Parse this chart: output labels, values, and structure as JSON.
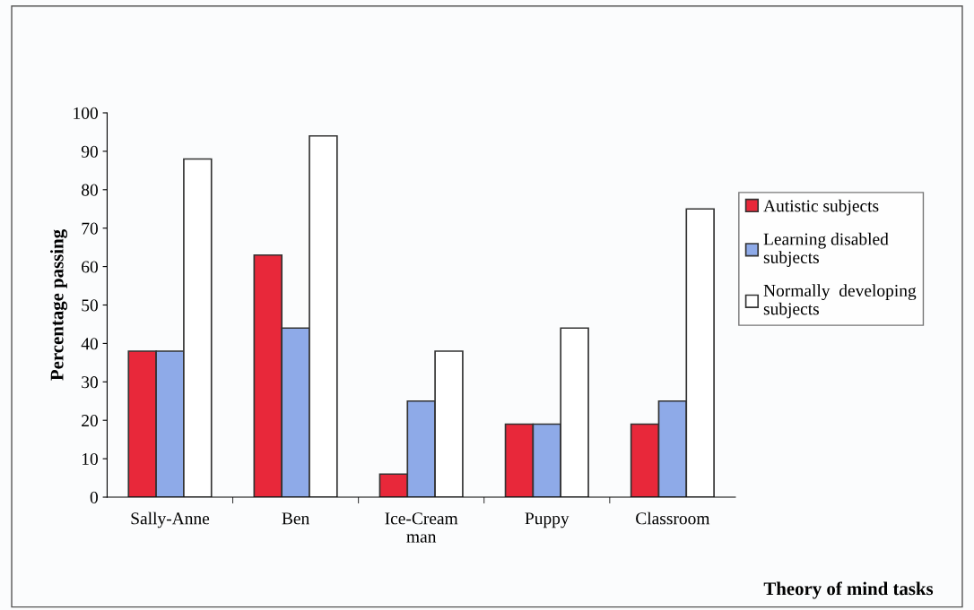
{
  "chart_data": {
    "type": "bar",
    "xlabel": "Theory of mind tasks",
    "ylabel": "Percentage passing",
    "categories": [
      "Sally-Anne",
      "Ben",
      "Ice-Cream\nman",
      "Puppy",
      "Classroom"
    ],
    "series": [
      {
        "name": "Autistic subjects",
        "color": "#e8283a",
        "values": [
          38,
          63,
          6,
          19,
          19
        ]
      },
      {
        "name": "Learning disabled\nsubjects",
        "color": "#8eaae8",
        "values": [
          38,
          44,
          25,
          19,
          25
        ]
      },
      {
        "name": "Normally  developing\nsubjects",
        "color": "#ffffff",
        "values": [
          88,
          94,
          38,
          44,
          75
        ]
      }
    ],
    "ylim": [
      0,
      100
    ],
    "yticks": [
      0,
      10,
      20,
      30,
      40,
      50,
      60,
      70,
      80,
      90,
      100
    ],
    "grid": false,
    "legend": "right"
  }
}
